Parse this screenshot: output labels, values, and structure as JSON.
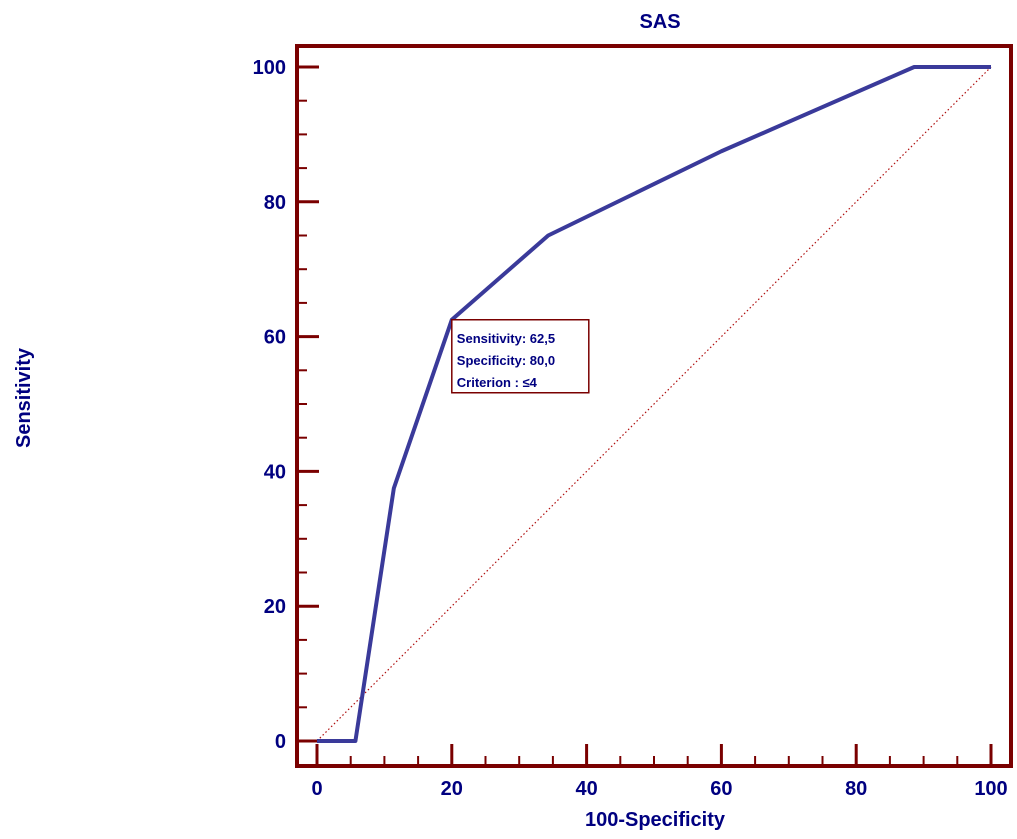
{
  "chart_data": {
    "type": "line",
    "title": "SAS",
    "xlabel": "100-Specificity",
    "ylabel": "Sensitivity",
    "xlim": [
      0,
      100
    ],
    "ylim": [
      0,
      100
    ],
    "x_ticks": [
      0,
      20,
      40,
      60,
      80,
      100
    ],
    "y_ticks": [
      0,
      20,
      40,
      60,
      80,
      100
    ],
    "x_tick_labels": [
      "0",
      "20",
      "40",
      "60",
      "80",
      "100"
    ],
    "y_tick_labels": [
      "0",
      "20",
      "40",
      "60",
      "80",
      "100"
    ],
    "grid": false,
    "series": [
      {
        "x": [
          0,
          5.7,
          11.4,
          20,
          34.3,
          60,
          88.6,
          100
        ],
        "y": [
          0,
          0,
          37.5,
          62.5,
          75,
          87.5,
          100,
          100
        ]
      },
      {
        "x": [
          0,
          100
        ],
        "y": [
          0,
          100
        ]
      }
    ],
    "annotation": {
      "x": 20,
      "y": 62.5,
      "lines": [
        "Sensitivity: 62,5",
        "Specificity: 80,0",
        "Criterion : ≤4"
      ]
    },
    "colors": {
      "frame": "#7a0000",
      "roc_line": "#3a3a9a",
      "diagonal": "#b01010",
      "text": "#000080"
    }
  }
}
